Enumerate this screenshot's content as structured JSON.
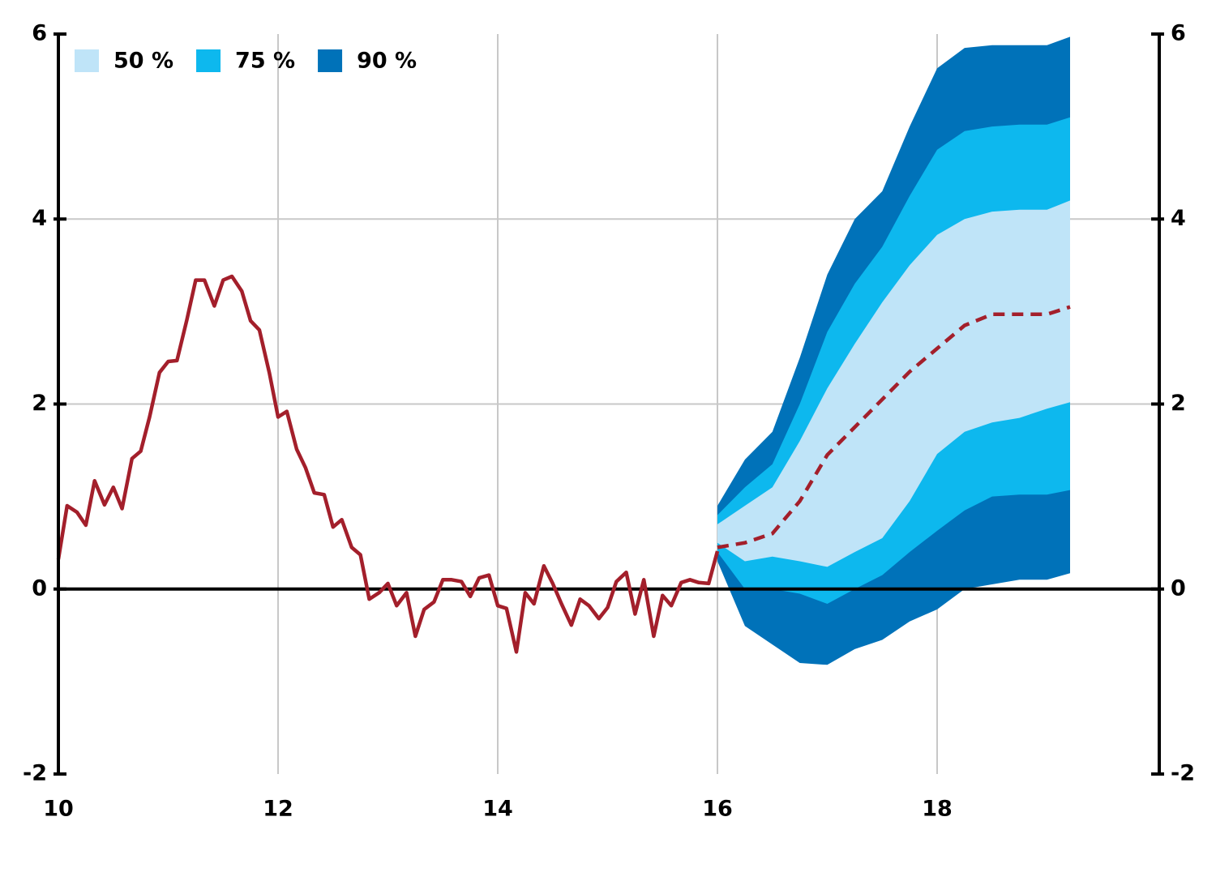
{
  "chart_data": {
    "type": "line",
    "legend": "upper left",
    "grid": true,
    "xlim": [
      10,
      20
    ],
    "xticks": [
      10,
      12,
      14,
      16,
      18
    ],
    "ylim": [
      -2,
      6
    ],
    "yticks": [
      -2,
      0,
      2,
      4,
      6
    ],
    "y2lim": [
      -2,
      6
    ],
    "y2ticks": [
      -2,
      0,
      2,
      4,
      6
    ],
    "x": [
      10,
      10.08,
      10.17,
      10.25,
      10.33,
      10.42,
      10.5,
      10.58,
      10.67,
      10.75,
      10.83,
      10.92,
      11,
      11.08,
      11.17,
      11.25,
      11.33,
      11.42,
      11.5,
      11.58,
      11.67,
      11.75,
      11.83,
      11.92,
      12,
      12.08,
      12.17,
      12.25,
      12.33,
      12.42,
      12.5,
      12.58,
      12.67,
      12.75,
      12.83,
      12.92,
      13,
      13.08,
      13.17,
      13.25,
      13.33,
      13.42,
      13.5,
      13.58,
      13.67,
      13.75,
      13.83,
      13.92,
      14,
      14.08,
      14.17,
      14.25,
      14.33,
      14.42,
      14.5,
      14.58,
      14.67,
      14.75,
      14.83,
      14.92,
      15,
      15.08,
      15.17,
      15.25,
      15.33,
      15.42,
      15.5,
      15.58,
      15.67,
      15.75,
      15.83,
      15.92,
      16
    ],
    "series": [
      {
        "color": "#a31f2b",
        "values": [
          0.32,
          0.9,
          0.83,
          0.69,
          1.17,
          0.91,
          1.1,
          0.87,
          1.41,
          1.49,
          1.86,
          2.34,
          2.46,
          2.47,
          2.91,
          3.34,
          3.34,
          3.06,
          3.34,
          3.38,
          3.22,
          2.9,
          2.8,
          2.34,
          1.86,
          1.92,
          1.51,
          1.31,
          1.04,
          1.02,
          0.67,
          0.75,
          0.45,
          0.37,
          -0.11,
          -0.04,
          0.06,
          -0.18,
          -0.04,
          -0.51,
          -0.22,
          -0.14,
          0.1,
          0.1,
          0.08,
          -0.08,
          0.12,
          0.15,
          -0.18,
          -0.21,
          -0.68,
          -0.04,
          -0.16,
          0.25,
          0.06,
          -0.16,
          -0.39,
          -0.11,
          -0.18,
          -0.32,
          -0.2,
          0.08,
          0.18,
          -0.27,
          0.1,
          -0.51,
          -0.07,
          -0.18,
          0.07,
          0.1,
          0.07,
          0.06,
          0.41
        ]
      }
    ],
    "forecast": {
      "x": [
        16,
        16.25,
        16.5,
        16.75,
        17,
        17.25,
        17.5,
        17.75,
        18,
        18.25,
        18.5,
        18.75,
        19,
        19.21
      ],
      "median": {
        "color": "#a31f2b",
        "dashed": true,
        "values": [
          0.45,
          0.5,
          0.6,
          0.95,
          1.45,
          1.75,
          2.05,
          2.35,
          2.6,
          2.85,
          2.97,
          2.97,
          2.97,
          3.05
        ]
      },
      "bands": [
        {
          "name": "90 %",
          "color": "#0072b9",
          "lower": [
            0.3,
            -0.4,
            -0.6,
            -0.8,
            -0.82,
            -0.65,
            -0.55,
            -0.35,
            -0.22,
            0,
            0.05,
            0.1,
            0.1,
            0.17
          ],
          "upper": [
            0.9,
            1.4,
            1.7,
            2.5,
            3.4,
            4,
            4.3,
            5,
            5.63,
            5.85,
            5.88,
            5.88,
            5.88,
            5.97
          ]
        },
        {
          "name": "75 %",
          "color": "#0db8ee",
          "lower": [
            0.4,
            0,
            0,
            -0.05,
            -0.16,
            0,
            0.15,
            0.4,
            0.63,
            0.85,
            1,
            1.02,
            1.02,
            1.07
          ],
          "upper": [
            0.8,
            1.1,
            1.35,
            2,
            2.78,
            3.3,
            3.7,
            4.25,
            4.75,
            4.95,
            5,
            5.02,
            5.02,
            5.1
          ]
        },
        {
          "name": "50 %",
          "color": "#bfe4f8",
          "lower": [
            0.5,
            0.3,
            0.35,
            0.3,
            0.24,
            0.4,
            0.55,
            0.95,
            1.46,
            1.7,
            1.8,
            1.85,
            1.95,
            2.02
          ],
          "upper": [
            0.7,
            0.9,
            1.1,
            1.6,
            2.17,
            2.65,
            3.1,
            3.5,
            3.83,
            4,
            4.08,
            4.1,
            4.1,
            4.2
          ]
        }
      ]
    }
  }
}
